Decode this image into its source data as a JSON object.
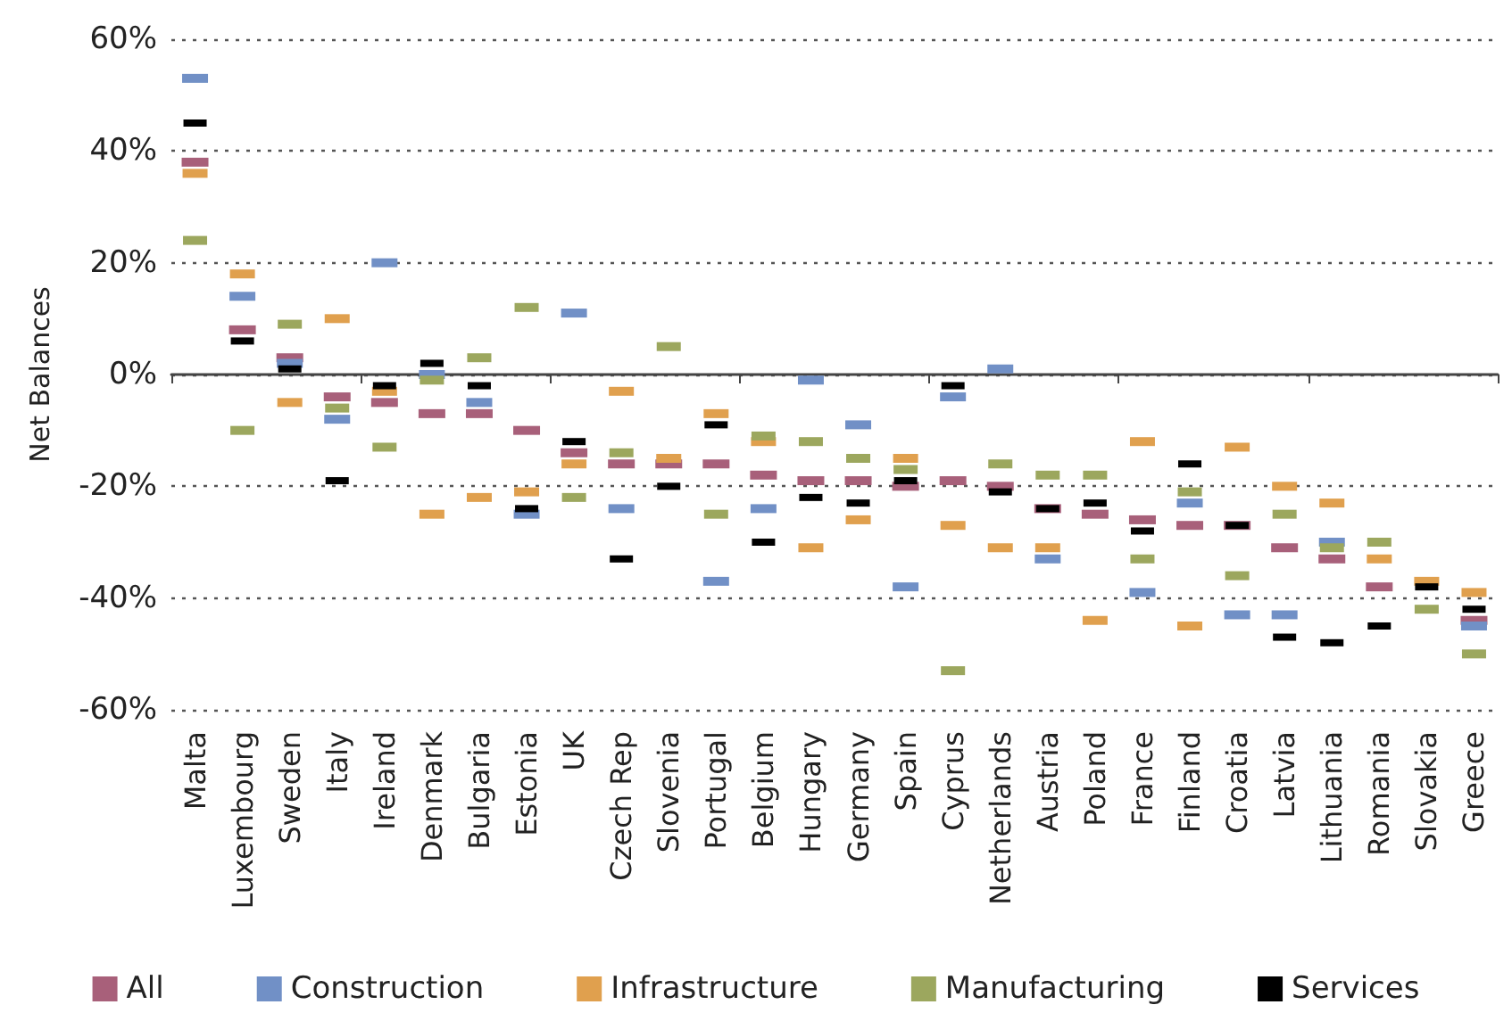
{
  "chart_data": {
    "type": "scatter",
    "ylabel": "Net Balances",
    "categories": [
      "Malta",
      "Luxembourg",
      "Sweden",
      "Italy",
      "Ireland",
      "Denmark",
      "Bulgaria",
      "Estonia",
      "UK",
      "Czech Rep",
      "Slovenia",
      "Portugal",
      "Belgium",
      "Hungary",
      "Germany",
      "Spain",
      "Cyprus",
      "Netherlands",
      "Austria",
      "Poland",
      "France",
      "Finland",
      "Croatia",
      "Latvia",
      "Lithuania",
      "Romania",
      "Slovakia",
      "Greece"
    ],
    "series": [
      {
        "name": "All",
        "color": "#a8607a",
        "values": [
          38,
          8,
          3,
          -4,
          -5,
          -7,
          -7,
          -10,
          -14,
          -16,
          -16,
          -16,
          -18,
          -19,
          -19,
          -20,
          -19,
          -20,
          -24,
          -25,
          -26,
          -27,
          -27,
          -31,
          -33,
          -38,
          null,
          -44
        ]
      },
      {
        "name": "Construction",
        "color": "#7190c6",
        "values": [
          53,
          14,
          2,
          -8,
          20,
          0,
          -5,
          -25,
          11,
          -24,
          null,
          -37,
          -24,
          -1,
          -9,
          -38,
          -4,
          1,
          -33,
          null,
          -39,
          -23,
          -43,
          -43,
          -30,
          null,
          null,
          -45
        ]
      },
      {
        "name": "Infrastructure",
        "color": "#e0a04e",
        "values": [
          36,
          18,
          -5,
          10,
          -3,
          -25,
          -22,
          -21,
          -16,
          -3,
          -15,
          -7,
          -12,
          -31,
          -26,
          -15,
          -27,
          -31,
          -31,
          -44,
          -12,
          -45,
          -13,
          -20,
          -23,
          -33,
          -37,
          -39
        ]
      },
      {
        "name": "Manufacturing",
        "color": "#9ca75e",
        "values": [
          24,
          -10,
          9,
          -6,
          -13,
          -1,
          3,
          12,
          -22,
          -14,
          5,
          -25,
          -11,
          -12,
          -15,
          -17,
          -53,
          -16,
          -18,
          -18,
          -33,
          -21,
          -36,
          -25,
          -31,
          -30,
          -42,
          -50
        ]
      },
      {
        "name": "Services",
        "color": "#000000",
        "values": [
          45,
          6,
          1,
          -19,
          -2,
          2,
          -2,
          -24,
          -12,
          -33,
          -20,
          -9,
          -30,
          -22,
          -23,
          -19,
          -2,
          -21,
          -24,
          -23,
          -28,
          -16,
          -27,
          -47,
          -48,
          -45,
          -38,
          -42
        ]
      }
    ],
    "ylim": [
      -60,
      60
    ],
    "yticks": [
      {
        "value": -60,
        "label": "-60%"
      },
      {
        "value": -40,
        "label": "-40%"
      },
      {
        "value": -20,
        "label": "-20%"
      },
      {
        "value": 0,
        "label": "0%"
      },
      {
        "value": 20,
        "label": "20%"
      },
      {
        "value": 40,
        "label": "40%"
      },
      {
        "value": 60,
        "label": "60%"
      }
    ],
    "grid": "y",
    "legend": "bottom"
  }
}
